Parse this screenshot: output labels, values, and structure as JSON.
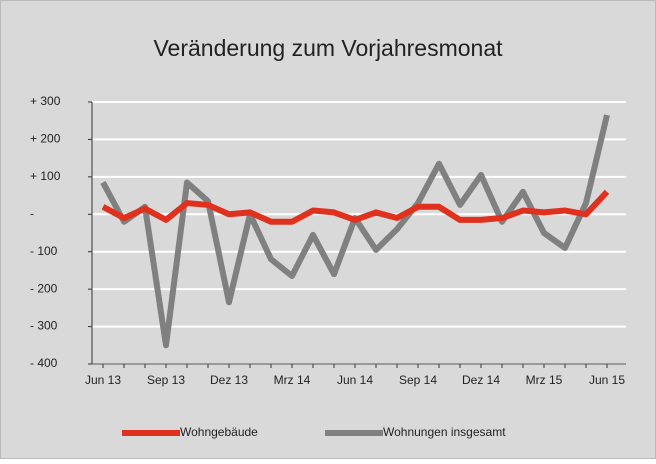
{
  "chart_data": {
    "type": "line",
    "title": "Veränderung zum Vorjahresmonat",
    "categories": [
      "Jun 13",
      null,
      null,
      "Sep 13",
      null,
      null,
      "Dez 13",
      null,
      null,
      "Mrz 14",
      null,
      null,
      "Jun 14",
      null,
      null,
      "Sep 14",
      null,
      null,
      "Dez 14",
      null,
      null,
      "Mrz 15",
      null,
      null,
      "Jun 15"
    ],
    "series": [
      {
        "name": "Wohngebäude",
        "color": "#e0301e",
        "values": [
          20,
          -10,
          15,
          -15,
          30,
          25,
          0,
          5,
          -20,
          -20,
          10,
          5,
          -15,
          5,
          -10,
          20,
          20,
          -15,
          -15,
          -10,
          10,
          5,
          10,
          0,
          60
        ]
      },
      {
        "name": "Wohnungen insgesamt",
        "color": "#808080",
        "values": [
          85,
          -20,
          20,
          -350,
          85,
          35,
          -235,
          0,
          -120,
          -165,
          -55,
          -160,
          -10,
          -95,
          -40,
          30,
          135,
          25,
          105,
          -20,
          60,
          -50,
          -90,
          30,
          265
        ]
      }
    ],
    "ylim": [
      -400,
      300
    ],
    "yticks": [
      {
        "value": -400,
        "label": "- 400"
      },
      {
        "value": -300,
        "label": "- 300"
      },
      {
        "value": -200,
        "label": "- 200"
      },
      {
        "value": -100,
        "label": "- 100"
      },
      {
        "value": 0,
        "label": "-"
      },
      {
        "value": 100,
        "label": "+ 100"
      },
      {
        "value": 200,
        "label": "+ 200"
      },
      {
        "value": 300,
        "label": "+ 300"
      }
    ],
    "grid": true
  }
}
